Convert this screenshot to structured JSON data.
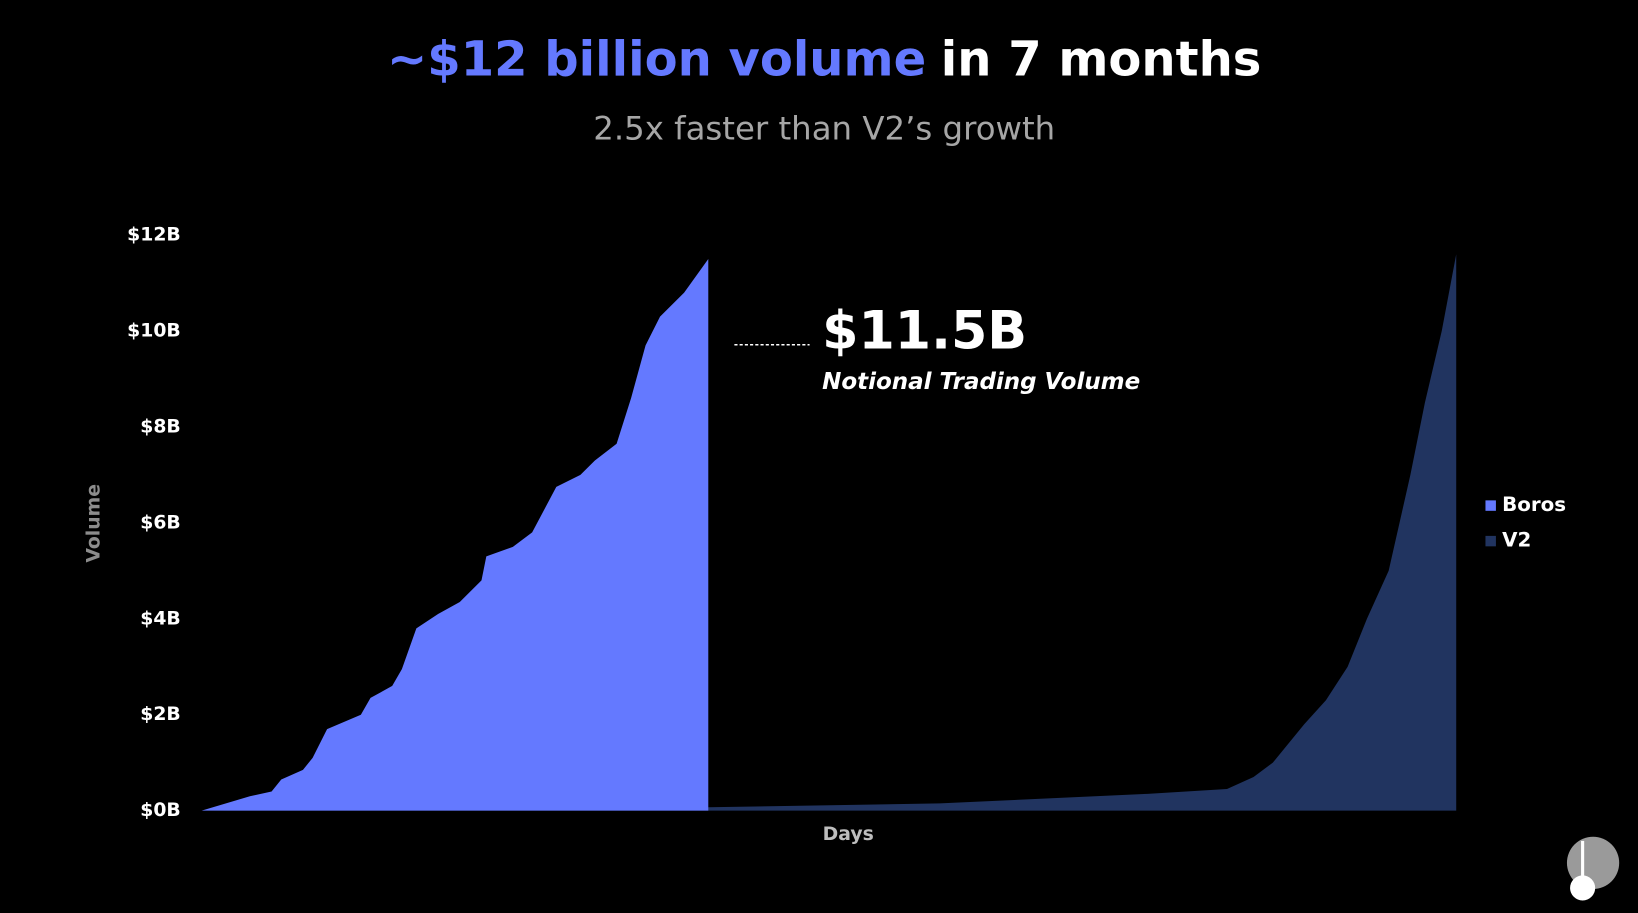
{
  "chart_data": {
    "type": "area",
    "title": {
      "highlight": "~$12 billion volume",
      "rest": "in 7 months"
    },
    "subtitle": "2.5x faster than V2’s growth",
    "x_label": "Days",
    "y_label": "Volume",
    "xlim": [
      0,
      520
    ],
    "ylim": [
      0,
      12
    ],
    "yticks": [
      {
        "value": 0,
        "label": "$0B"
      },
      {
        "value": 2,
        "label": "$2B"
      },
      {
        "value": 4,
        "label": "$4B"
      },
      {
        "value": 6,
        "label": "$6B"
      },
      {
        "value": 8,
        "label": "$8B"
      },
      {
        "value": 10,
        "label": "$10B"
      },
      {
        "value": 12,
        "label": "$12B"
      }
    ],
    "legend": "right",
    "series": [
      {
        "name": "Boros",
        "color": "#6479ff",
        "x": [
          0,
          20,
          29,
          33,
          42,
          46,
          52,
          66,
          70,
          79,
          83,
          89,
          98,
          107,
          116,
          118,
          129,
          137,
          147,
          157,
          163,
          172,
          178,
          184,
          190,
          200,
          210
        ],
        "values": [
          0,
          0.3,
          0.4,
          0.65,
          0.85,
          1.1,
          1.7,
          2.0,
          2.35,
          2.6,
          2.95,
          3.8,
          4.1,
          4.35,
          4.8,
          5.3,
          5.5,
          5.8,
          6.75,
          7.0,
          7.3,
          7.65,
          8.6,
          9.7,
          10.3,
          10.8,
          11.5
        ]
      },
      {
        "name": "V2",
        "color": "#213460",
        "x": [
          0,
          90,
          210,
          306,
          392,
          425,
          436,
          444,
          457,
          466,
          475,
          483,
          492,
          501,
          507,
          514,
          520
        ],
        "values": [
          0,
          0.02,
          0.07,
          0.15,
          0.35,
          0.45,
          0.7,
          1.0,
          1.8,
          2.3,
          3.0,
          4.0,
          5.0,
          7.0,
          8.5,
          10.0,
          11.6
        ]
      }
    ],
    "annotations": [
      {
        "text": "$11.5B"
      },
      {
        "text": "Notional Trading Volume"
      }
    ]
  }
}
